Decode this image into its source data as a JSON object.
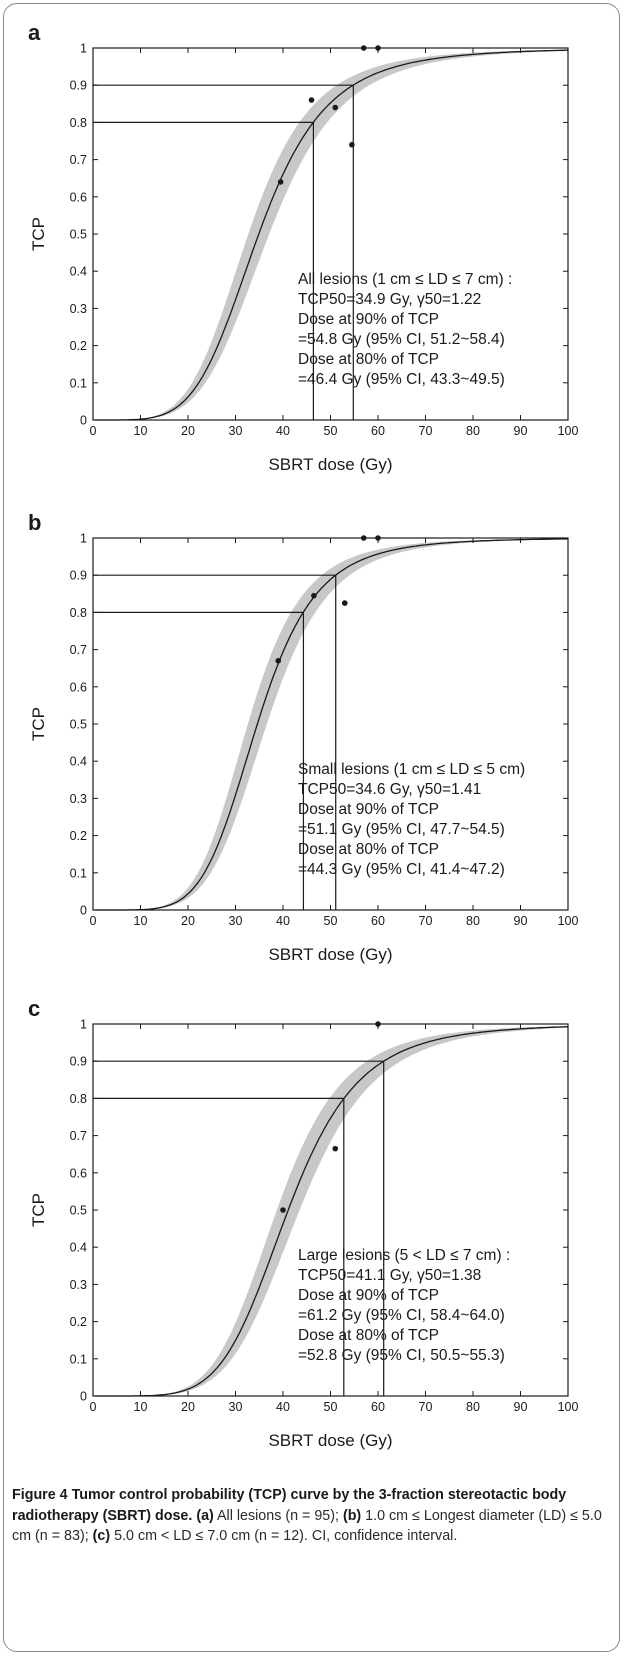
{
  "chart_data": [
    {
      "type": "line",
      "panel_label": "a",
      "xlabel": "SBRT dose (Gy)",
      "ylabel": "TCP",
      "xlim": [
        0,
        100
      ],
      "ylim": [
        0,
        1
      ],
      "xticks": [
        "0",
        "10",
        "20",
        "30",
        "40",
        "50",
        "60",
        "70",
        "80",
        "90",
        "100"
      ],
      "yticks": [
        "0",
        "0.1",
        "0.2",
        "0.3",
        "0.4",
        "0.5",
        "0.6",
        "0.7",
        "0.8",
        "0.9",
        "1"
      ],
      "grid": false,
      "tcp50": 34.9,
      "gamma50": 1.22,
      "band_half_width": 2.2,
      "points": [
        [
          39.5,
          0.64
        ],
        [
          46,
          0.86
        ],
        [
          51,
          0.84
        ],
        [
          54.5,
          0.74
        ],
        [
          57,
          1.0
        ],
        [
          60,
          1.0
        ]
      ],
      "markers": [
        {
          "dose": 46.4,
          "tcp": 0.8
        },
        {
          "dose": 54.8,
          "tcp": 0.9
        }
      ],
      "annotation": [
        "All lesions (1 cm ≤ LD ≤ 7 cm) :",
        "TCP50=34.9 Gy, γ50=1.22",
        "Dose at 90% of TCP",
        "=54.8 Gy (95% CI, 51.2~58.4)",
        "Dose at 80% of TCP",
        "=46.4 Gy (95% CI, 43.3~49.5)"
      ]
    },
    {
      "type": "line",
      "panel_label": "b",
      "xlabel": "SBRT dose (Gy)",
      "ylabel": "TCP",
      "xlim": [
        0,
        100
      ],
      "ylim": [
        0,
        1
      ],
      "xticks": [
        "0",
        "10",
        "20",
        "30",
        "40",
        "50",
        "60",
        "70",
        "80",
        "90",
        "100"
      ],
      "yticks": [
        "0",
        "0.1",
        "0.2",
        "0.3",
        "0.4",
        "0.5",
        "0.6",
        "0.7",
        "0.8",
        "0.9",
        "1"
      ],
      "grid": false,
      "tcp50": 34.6,
      "gamma50": 1.41,
      "band_half_width": 2.0,
      "points": [
        [
          39,
          0.67
        ],
        [
          46.5,
          0.845
        ],
        [
          53,
          0.825
        ],
        [
          57,
          1.0
        ],
        [
          60,
          1.0
        ]
      ],
      "markers": [
        {
          "dose": 44.3,
          "tcp": 0.8
        },
        {
          "dose": 51.1,
          "tcp": 0.9
        }
      ],
      "annotation": [
        "Small lesions (1 cm ≤ LD ≤ 5 cm)",
        "TCP50=34.6 Gy, γ50=1.41",
        "Dose at 90% of TCP",
        "=51.1 Gy (95% CI, 47.7~54.5)",
        "Dose at 80% of TCP",
        "=44.3 Gy (95% CI, 41.4~47.2)"
      ]
    },
    {
      "type": "line",
      "panel_label": "c",
      "xlabel": "SBRT dose (Gy)",
      "ylabel": "TCP",
      "xlim": [
        0,
        100
      ],
      "ylim": [
        0,
        1
      ],
      "xticks": [
        "0",
        "10",
        "20",
        "30",
        "40",
        "50",
        "60",
        "70",
        "80",
        "90",
        "100"
      ],
      "yticks": [
        "0",
        "0.1",
        "0.2",
        "0.3",
        "0.4",
        "0.5",
        "0.6",
        "0.7",
        "0.8",
        "0.9",
        "1"
      ],
      "grid": false,
      "tcp50": 41.1,
      "gamma50": 1.38,
      "band_half_width": 2.4,
      "points": [
        [
          40,
          0.5
        ],
        [
          51,
          0.665
        ],
        [
          60,
          1.0
        ]
      ],
      "markers": [
        {
          "dose": 52.8,
          "tcp": 0.8
        },
        {
          "dose": 61.2,
          "tcp": 0.9
        }
      ],
      "annotation": [
        "Large lesions (5 < LD ≤ 7 cm) :",
        "TCP50=41.1 Gy, γ50=1.38",
        "Dose at 90% of TCP",
        "=61.2 Gy (95% CI, 58.4~64.0)",
        "Dose at 80% of TCP",
        "=52.8 Gy (95% CI, 50.5~55.3)"
      ]
    }
  ],
  "caption": {
    "title": "Figure 4 Tumor control probability (TCP) curve by the 3-fraction stereotactic body radiotherapy (SBRT) dose.",
    "parts": [
      {
        "label": "(a)",
        "text": " All lesions (n = 95); "
      },
      {
        "label": "(b)",
        "text": " 1.0 cm ≤ Longest diameter (LD) ≤ 5.0 cm (n = 83); "
      },
      {
        "label": "(c)",
        "text": " 5.0 cm < LD ≤ 7.0 cm (n = 12). CI, confidence interval."
      }
    ]
  },
  "colors": {
    "curve": "#1a1a1a",
    "band": "#c8c8c8",
    "axis": "#1a1a1a",
    "text": "#1a1a1a"
  }
}
